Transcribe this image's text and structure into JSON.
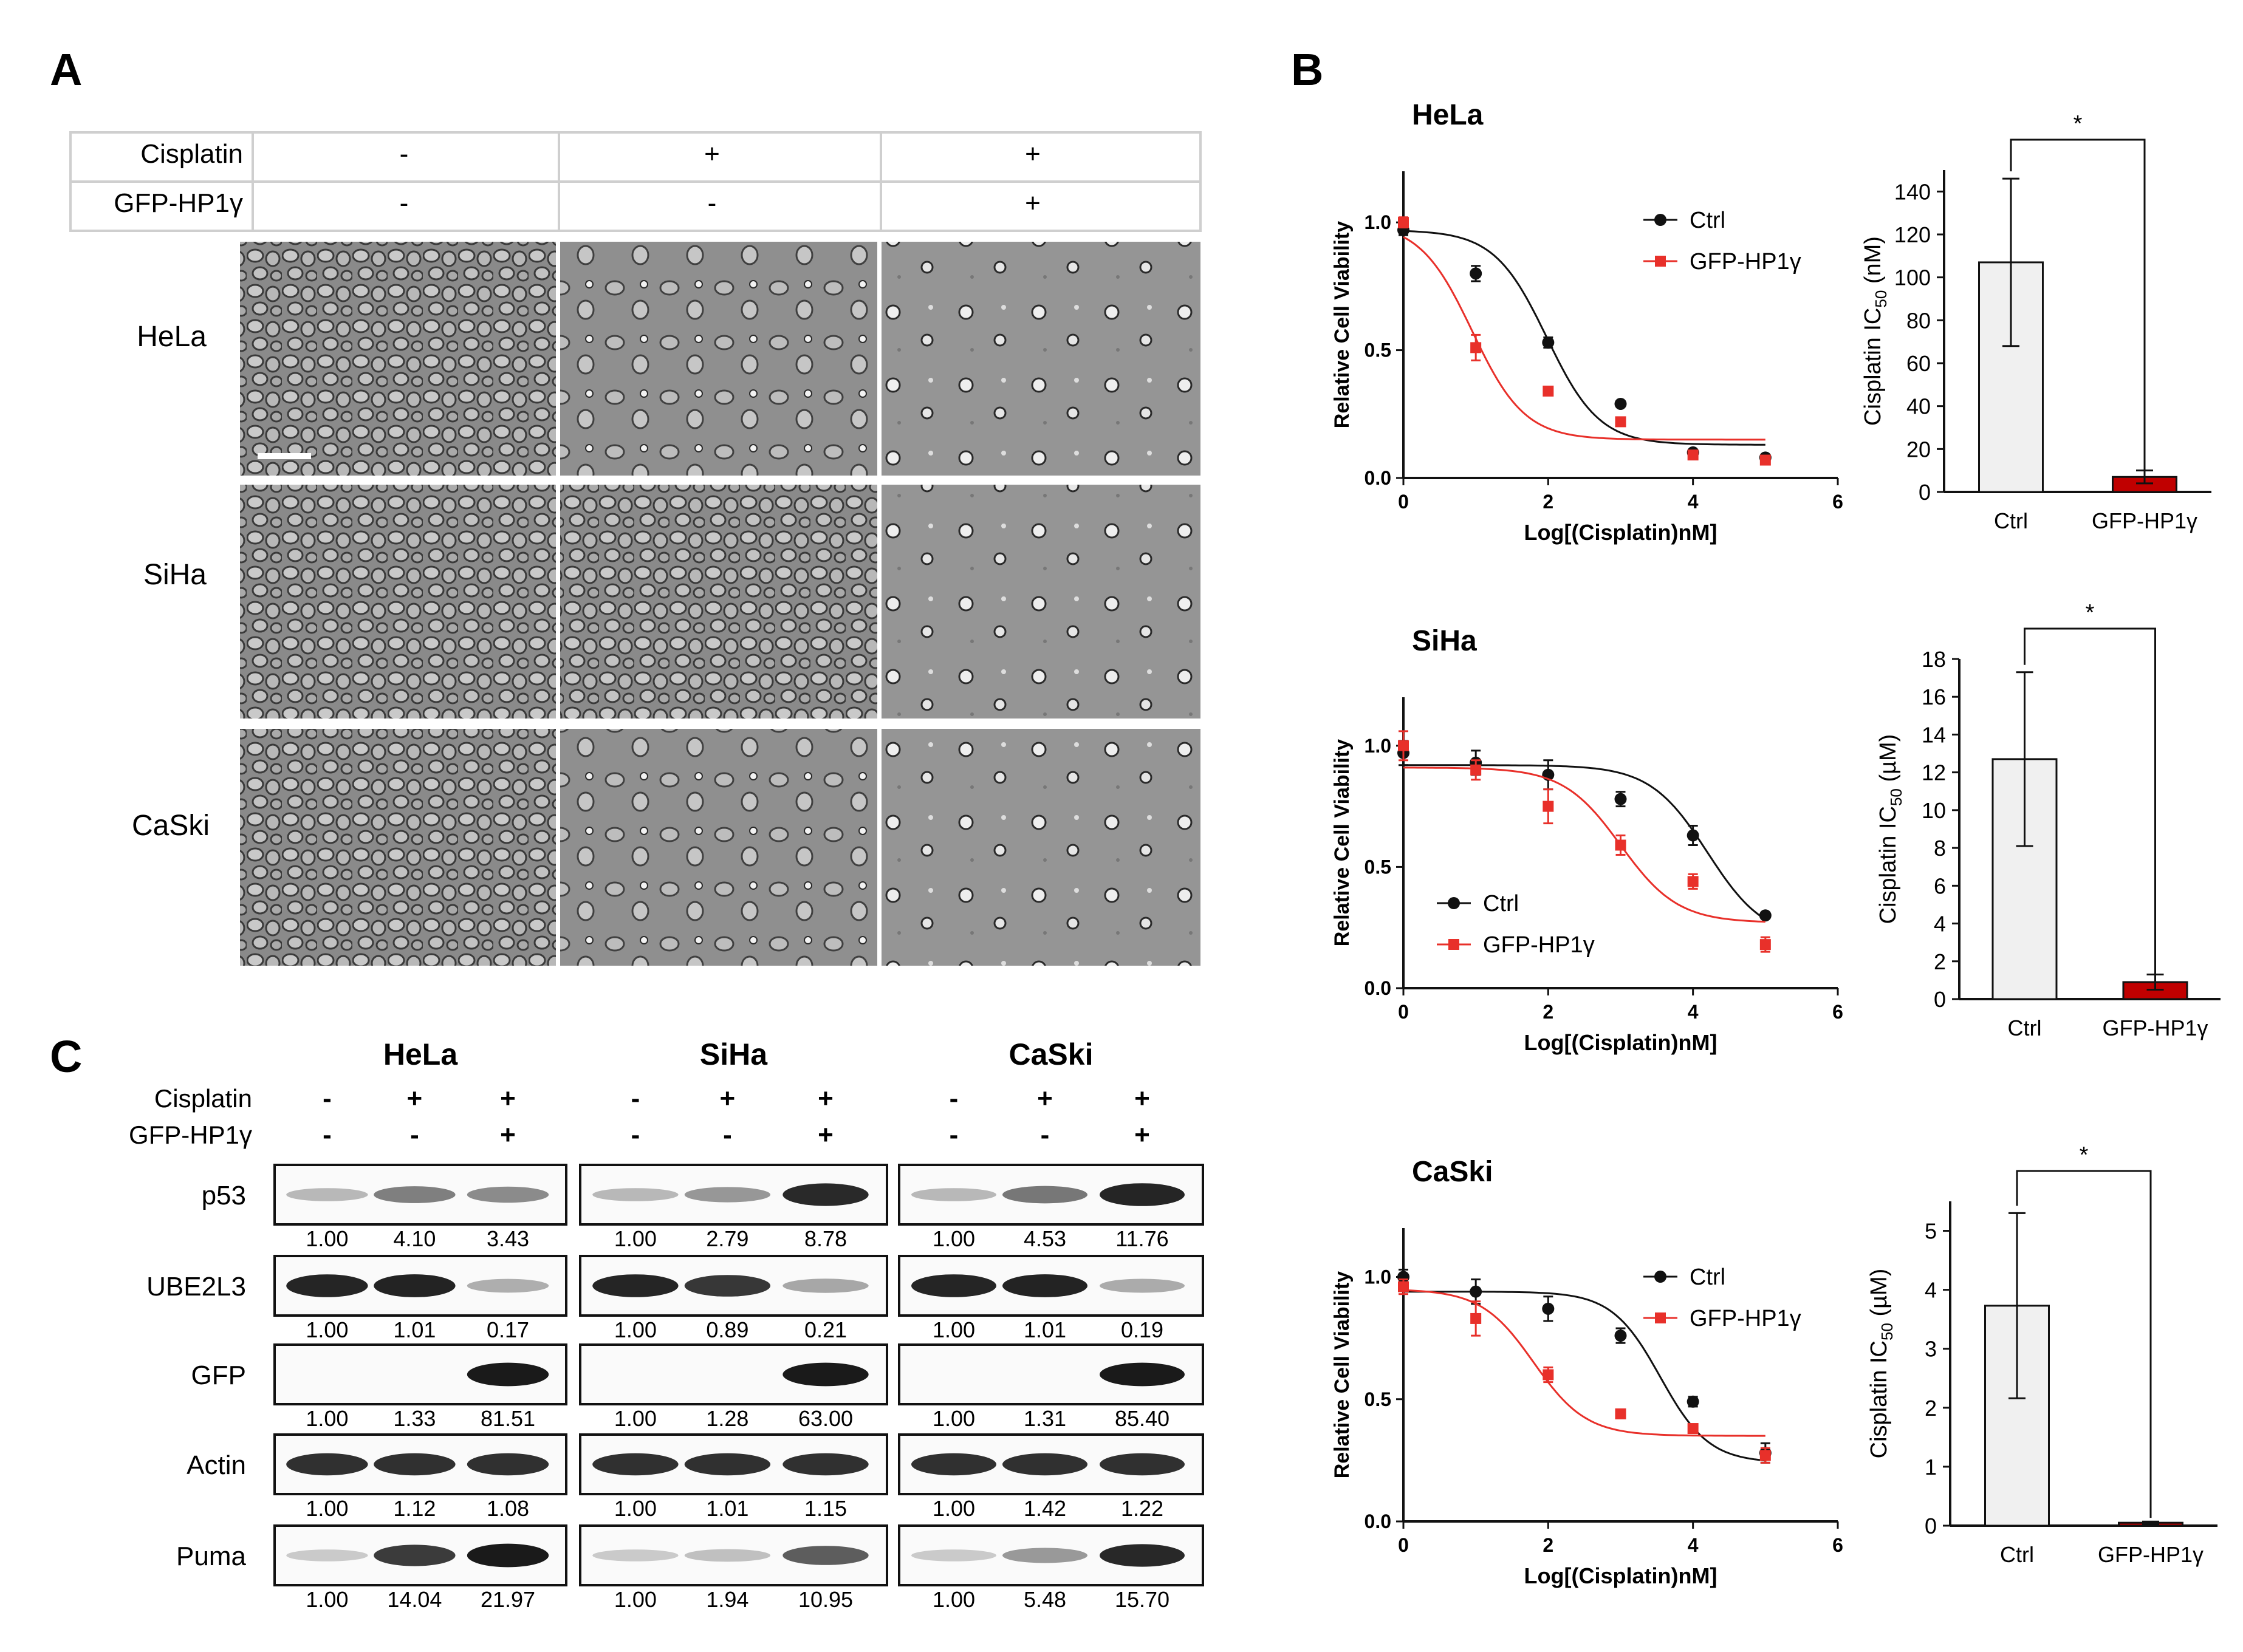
{
  "panels": {
    "a": "A",
    "b": "B",
    "c": "C"
  },
  "panel_a": {
    "table": {
      "rows": [
        {
          "label": "Cisplatin",
          "values": [
            "-",
            "+",
            "+"
          ]
        },
        {
          "label": "GFP-HP1γ",
          "values": [
            "-",
            "-",
            "+"
          ]
        }
      ]
    },
    "cell_lines": [
      "HeLa",
      "SiHa",
      "CaSki"
    ]
  },
  "panel_c": {
    "cell_lines": [
      "HeLa",
      "SiHa",
      "CaSki"
    ],
    "treatment_rows": [
      {
        "label": "Cisplatin",
        "signs": [
          "-",
          "+",
          "+"
        ]
      },
      {
        "label": "GFP-HP1γ",
        "signs": [
          "-",
          "-",
          "+"
        ]
      }
    ],
    "blots": [
      {
        "name": "p53",
        "values": [
          [
            "1.00",
            "4.10",
            "3.43"
          ],
          [
            "1.00",
            "2.79",
            "8.78"
          ],
          [
            "1.00",
            "4.53",
            "11.76"
          ]
        ]
      },
      {
        "name": "UBE2L3",
        "values": [
          [
            "1.00",
            "1.01",
            "0.17"
          ],
          [
            "1.00",
            "0.89",
            "0.21"
          ],
          [
            "1.00",
            "1.01",
            "0.19"
          ]
        ]
      },
      {
        "name": "GFP",
        "values": [
          [
            "1.00",
            "1.33",
            "81.51"
          ],
          [
            "1.00",
            "1.28",
            "63.00"
          ],
          [
            "1.00",
            "1.31",
            "85.40"
          ]
        ]
      },
      {
        "name": "Actin",
        "values": [
          [
            "1.00",
            "1.12",
            "1.08"
          ],
          [
            "1.00",
            "1.01",
            "1.15"
          ],
          [
            "1.00",
            "1.42",
            "1.22"
          ]
        ]
      },
      {
        "name": "Puma",
        "values": [
          [
            "1.00",
            "14.04",
            "21.97"
          ],
          [
            "1.00",
            "1.94",
            "10.95"
          ],
          [
            "1.00",
            "5.48",
            "15.70"
          ]
        ]
      }
    ]
  },
  "colors": {
    "ctrl": "#111111",
    "gfp": "#e8302a",
    "bar_ctrl": "#f0f0f0",
    "bar_gfp": "#c00000"
  },
  "chart_data": [
    {
      "type": "line",
      "title": "HeLa",
      "xlabel": "Log[(Cisplatin)nM]",
      "ylabel": "Relative Cell Viability",
      "xlim": [
        0,
        6
      ],
      "ylim": [
        0,
        1.2
      ],
      "xticks": [
        "0",
        "2",
        "4",
        "6"
      ],
      "yticks": [
        "0.0",
        "0.5",
        "1.0"
      ],
      "legend_position": "top-right",
      "series": [
        {
          "name": "Ctrl",
          "x": [
            0,
            1,
            2,
            3,
            4,
            5
          ],
          "y": [
            0.97,
            0.8,
            0.53,
            0.29,
            0.1,
            0.08
          ],
          "err": [
            0.02,
            0.03,
            0.02,
            0.01,
            0.01,
            0.01
          ],
          "fit": {
            "top": 0.97,
            "bottom": 0.13,
            "logIC50": 1.98,
            "hill": 1.2
          }
        },
        {
          "name": "GFP-HP1γ",
          "x": [
            0,
            1,
            2,
            3,
            4,
            5
          ],
          "y": [
            1.0,
            0.51,
            0.34,
            0.22,
            0.09,
            0.07
          ],
          "err": [
            0.02,
            0.05,
            0.01,
            0.01,
            0.01,
            0.01
          ],
          "fit": {
            "top": 1.0,
            "bottom": 0.15,
            "logIC50": 0.95,
            "hill": 1.2
          }
        }
      ]
    },
    {
      "type": "bar",
      "ylabel": "Cisplatin IC50 (nM)",
      "ylabel_main": "Cisplatin IC",
      "ylabel_sub": "50",
      "ylabel_unit": " (nM)",
      "categories": [
        "Ctrl",
        "GFP-HP1γ"
      ],
      "values": [
        107,
        7
      ],
      "err": [
        39,
        3
      ],
      "ylim": [
        0,
        150
      ],
      "yticks": [
        "0",
        "20",
        "40",
        "60",
        "80",
        "100",
        "120",
        "140"
      ],
      "annotation": "*"
    },
    {
      "type": "line",
      "title": "SiHa",
      "xlabel": "Log[(Cisplatin)nM]",
      "ylabel": "Relative Cell Viability",
      "xlim": [
        0,
        6
      ],
      "ylim": [
        0,
        1.2
      ],
      "xticks": [
        "0",
        "2",
        "4",
        "6"
      ],
      "yticks": [
        "0.0",
        "0.5",
        "1.0"
      ],
      "legend_position": "bottom-left",
      "series": [
        {
          "name": "Ctrl",
          "x": [
            0,
            1,
            2,
            3,
            4,
            5
          ],
          "y": [
            0.97,
            0.93,
            0.88,
            0.78,
            0.63,
            0.3
          ],
          "err": [
            0.05,
            0.05,
            0.06,
            0.03,
            0.04,
            0.01
          ],
          "fit": {
            "top": 0.92,
            "bottom": 0.2,
            "logIC50": 4.2,
            "hill": 1.1
          }
        },
        {
          "name": "GFP-HP1γ",
          "x": [
            0,
            1,
            2,
            3,
            4,
            5
          ],
          "y": [
            1.0,
            0.9,
            0.75,
            0.59,
            0.44,
            0.18
          ],
          "err": [
            0.06,
            0.04,
            0.07,
            0.04,
            0.03,
            0.03
          ],
          "fit": {
            "top": 0.91,
            "bottom": 0.27,
            "logIC50": 3.0,
            "hill": 1.1
          }
        }
      ]
    },
    {
      "type": "bar",
      "ylabel": "Cisplatin IC50 (µM)",
      "ylabel_main": "Cisplatin IC",
      "ylabel_sub": "50",
      "ylabel_unit": " (µM)",
      "categories": [
        "Ctrl",
        "GFP-HP1γ"
      ],
      "values": [
        12.7,
        0.9
      ],
      "err": [
        4.6,
        0.4
      ],
      "ylim": [
        0,
        18
      ],
      "yticks": [
        "0",
        "2",
        "4",
        "6",
        "8",
        "10",
        "12",
        "14",
        "16",
        "18"
      ],
      "annotation": "*"
    },
    {
      "type": "line",
      "title": "CaSki",
      "xlabel": "Log[(Cisplatin)nM]",
      "ylabel": "Relative Cell Viability",
      "xlim": [
        0,
        6
      ],
      "ylim": [
        0,
        1.2
      ],
      "xticks": [
        "0",
        "2",
        "4",
        "6"
      ],
      "yticks": [
        "0.0",
        "0.5",
        "1.0"
      ],
      "legend_position": "top-right",
      "series": [
        {
          "name": "Ctrl",
          "x": [
            0,
            1,
            2,
            3,
            4,
            5
          ],
          "y": [
            1.0,
            0.94,
            0.87,
            0.76,
            0.49,
            0.28
          ],
          "err": [
            0.03,
            0.05,
            0.05,
            0.03,
            0.02,
            0.04
          ],
          "fit": {
            "top": 0.94,
            "bottom": 0.24,
            "logIC50": 3.55,
            "hill": 1.3
          }
        },
        {
          "name": "GFP-HP1γ",
          "x": [
            0,
            1,
            2,
            3,
            4,
            5
          ],
          "y": [
            0.96,
            0.83,
            0.6,
            0.44,
            0.38,
            0.27
          ],
          "err": [
            0.03,
            0.07,
            0.03,
            0.01,
            0.01,
            0.03
          ],
          "fit": {
            "top": 0.95,
            "bottom": 0.35,
            "logIC50": 1.8,
            "hill": 1.2
          }
        }
      ]
    },
    {
      "type": "bar",
      "ylabel": "Cisplatin IC50 (µM)",
      "ylabel_main": "Cisplatin IC",
      "ylabel_sub": "50",
      "ylabel_unit": " (µM)",
      "categories": [
        "Ctrl",
        "GFP-HP1γ"
      ],
      "values": [
        3.73,
        0.05
      ],
      "err": [
        1.57,
        0.02
      ],
      "ylim": [
        0,
        5.5
      ],
      "yticks": [
        "0",
        "1",
        "2",
        "3",
        "4",
        "5"
      ],
      "annotation": "*"
    }
  ]
}
